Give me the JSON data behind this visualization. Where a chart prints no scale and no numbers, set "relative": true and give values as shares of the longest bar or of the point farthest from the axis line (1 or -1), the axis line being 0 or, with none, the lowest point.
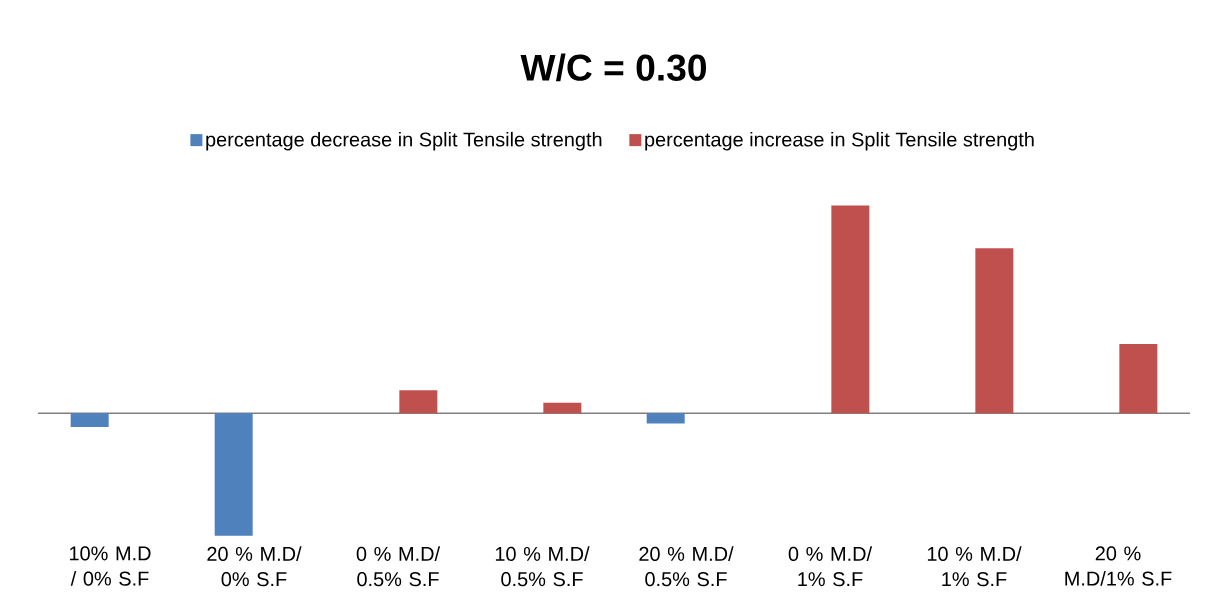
{
  "chart_data": {
    "type": "bar",
    "title": "W/C = 0.30",
    "relative": true,
    "legend": "top",
    "categories": [
      "10% M.D / 0% S.F",
      "20 % M.D/ 0% S.F",
      "0 % M.D/ 0.5% S.F",
      "10 % M.D/ 0.5% S.F",
      "20 % M.D/ 0.5% S.F",
      "0 % M.D/ 1% S.F",
      "10 % M.D/ 1% S.F",
      "20 % M.D/1% S.F"
    ],
    "series": [
      {
        "name": "percentage decrease in Split Tensile  strength",
        "color": "#4f81bd",
        "values": [
          -0.067,
          -0.59,
          null,
          null,
          -0.05,
          null,
          null,
          null
        ]
      },
      {
        "name": "percentage increase in Split Tensile strength",
        "color": "#c0504d",
        "values": [
          null,
          null,
          0.11,
          0.05,
          null,
          1.0,
          0.795,
          0.333
        ]
      }
    ]
  }
}
